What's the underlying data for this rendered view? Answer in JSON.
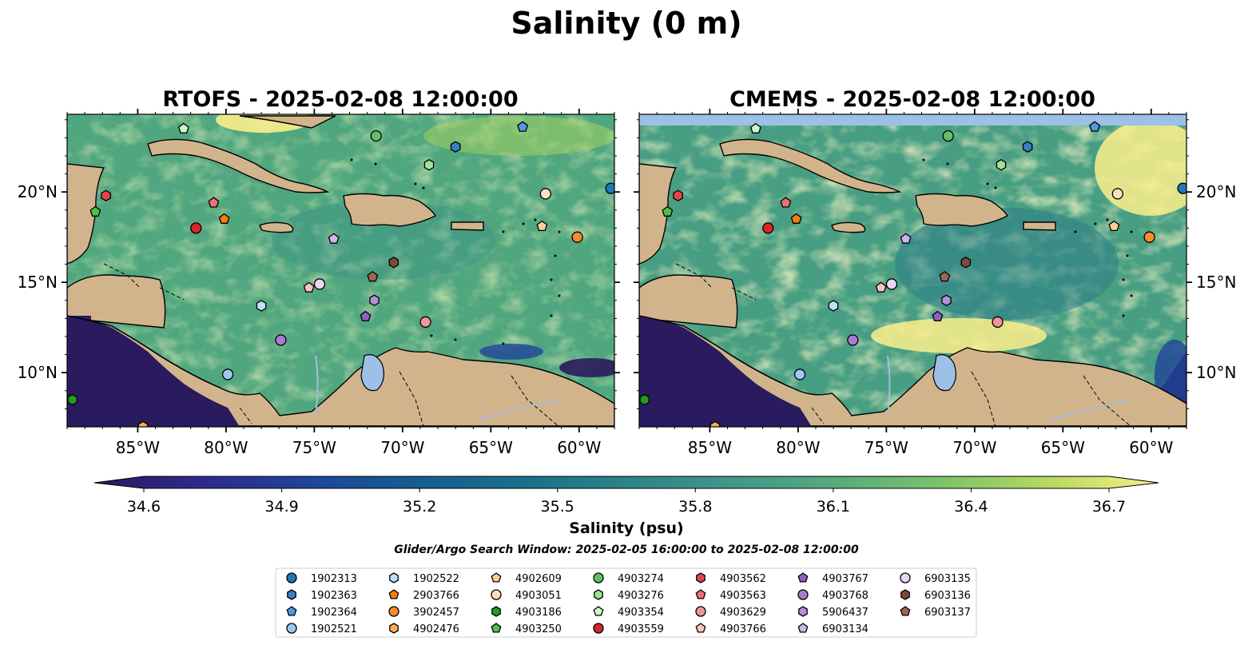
{
  "figure": {
    "title": "Salinity (0 m)",
    "colorbar_label": "Salinity (psu)",
    "search_window": "Glider/Argo Search Window: 2025-02-05 16:00:00 to 2025-02-08 12:00:00"
  },
  "colors": {
    "land": "#d2b48c",
    "ocean_nodata": "#9cc0e6",
    "lake": "#9cc0e6",
    "river": "#a7bcd8",
    "colormap": [
      "#2a1a5e",
      "#2e2a8c",
      "#1f449a",
      "#155c91",
      "#186f8b",
      "#2b8488",
      "#409889",
      "#58ab7c",
      "#7ec36a",
      "#a6d35e",
      "#d9e36c",
      "#fbee8c"
    ]
  },
  "chart_data": [
    {
      "type": "heatmap",
      "title": "RTOFS - 2025-02-08 12:00:00",
      "xlim": [
        -89,
        -58
      ],
      "ylim": [
        7,
        24.3
      ],
      "xticks": [
        -85,
        -80,
        -75,
        -70,
        -65,
        -60
      ],
      "xticklabels": [
        "85°W",
        "80°W",
        "75°W",
        "70°W",
        "65°W",
        "60°W"
      ],
      "yticks": [
        10,
        15,
        20
      ],
      "yticklabels": [
        "10°N",
        "15°N",
        "20°N"
      ],
      "value_range": [
        34.6,
        36.7
      ],
      "grid": false
    },
    {
      "type": "heatmap",
      "title": "CMEMS - 2025-02-08 12:00:00",
      "xlim": [
        -89,
        -58
      ],
      "ylim": [
        7,
        24.3
      ],
      "xticks": [
        -85,
        -80,
        -75,
        -70,
        -65,
        -60
      ],
      "xticklabels": [
        "85°W",
        "80°W",
        "75°W",
        "70°W",
        "65°W",
        "60°W"
      ],
      "yticks": [
        10,
        15,
        20
      ],
      "yticklabels": [
        "10°N",
        "15°N",
        "20°N"
      ],
      "value_range": [
        34.6,
        36.7
      ],
      "grid": false
    }
  ],
  "colorbar": {
    "min": 34.6,
    "max": 36.7,
    "ticks": [
      "34.6",
      "34.9",
      "35.2",
      "35.5",
      "35.8",
      "36.1",
      "36.4",
      "36.7"
    ],
    "extend": "both"
  },
  "floats": [
    {
      "id": "1902313",
      "marker": "circle",
      "color": "#1f77b4",
      "lon": -58.2,
      "lat": 20.2
    },
    {
      "id": "1902363",
      "marker": "hexagon",
      "color": "#3a7fc4",
      "lon": -67.0,
      "lat": 22.5
    },
    {
      "id": "1902364",
      "marker": "pentagon",
      "color": "#4f9ae0",
      "lon": -63.2,
      "lat": 23.6
    },
    {
      "id": "1902521",
      "marker": "circle",
      "color": "#9ccaf2",
      "lon": -79.9,
      "lat": 9.9
    },
    {
      "id": "1902522",
      "marker": "hexagon",
      "color": "#bfe0f8",
      "lon": -78.0,
      "lat": 13.7
    },
    {
      "id": "2903766",
      "marker": "pentagon",
      "color": "#f07f10",
      "lon": -80.1,
      "lat": 18.5
    },
    {
      "id": "3902457",
      "marker": "circle",
      "color": "#f58b2e",
      "lon": -60.1,
      "lat": 17.5
    },
    {
      "id": "4902476",
      "marker": "hexagon",
      "color": "#fcae5c",
      "lon": -84.7,
      "lat": 7.0
    },
    {
      "id": "4902609",
      "marker": "pentagon",
      "color": "#fdcd96",
      "lon": -62.1,
      "lat": 18.1
    },
    {
      "id": "4903051",
      "marker": "circle",
      "color": "#fde1c4",
      "lon": -61.9,
      "lat": 19.9
    },
    {
      "id": "4903186",
      "marker": "hexagon",
      "color": "#239b23",
      "lon": -88.7,
      "lat": 8.5
    },
    {
      "id": "4903250",
      "marker": "pentagon",
      "color": "#4cbf4c",
      "lon": -87.4,
      "lat": 18.9
    },
    {
      "id": "4903274",
      "marker": "circle",
      "color": "#62c062",
      "lon": -71.5,
      "lat": 23.1
    },
    {
      "id": "4903276",
      "marker": "hexagon",
      "color": "#9ee39a",
      "lon": -68.5,
      "lat": 21.5
    },
    {
      "id": "4903354",
      "marker": "pentagon",
      "color": "#ccf7c8",
      "lon": -82.4,
      "lat": 23.5
    },
    {
      "id": "4903559",
      "marker": "circle",
      "color": "#d62728",
      "lon": -81.7,
      "lat": 18.0
    },
    {
      "id": "4903562",
      "marker": "hexagon",
      "color": "#e3464a",
      "lon": -86.8,
      "lat": 19.8
    },
    {
      "id": "4903563",
      "marker": "pentagon",
      "color": "#ee6f6f",
      "lon": -80.7,
      "lat": 19.4
    },
    {
      "id": "4903629",
      "marker": "circle",
      "color": "#f09696",
      "lon": -68.7,
      "lat": 12.8
    },
    {
      "id": "4903766",
      "marker": "pentagon",
      "color": "#fbc2c2",
      "lon": -75.3,
      "lat": 14.7
    },
    {
      "id": "4903767",
      "marker": "pentagon",
      "color": "#8e5fc0",
      "lon": -72.1,
      "lat": 13.1
    },
    {
      "id": "4903768",
      "marker": "circle",
      "color": "#a57cd2",
      "lon": -76.9,
      "lat": 11.8
    },
    {
      "id": "5906437",
      "marker": "hexagon",
      "color": "#b58edc",
      "lon": -71.6,
      "lat": 14.0
    },
    {
      "id": "6903134",
      "marker": "pentagon",
      "color": "#cdb4ea",
      "lon": -73.9,
      "lat": 17.4
    },
    {
      "id": "6903135",
      "marker": "circle",
      "color": "#ecd6f2",
      "lon": -74.7,
      "lat": 14.9
    },
    {
      "id": "6903136",
      "marker": "hexagon",
      "color": "#7a4a3a",
      "lon": -70.5,
      "lat": 16.1
    },
    {
      "id": "6903137",
      "marker": "pentagon",
      "color": "#9a6656",
      "lon": -71.7,
      "lat": 15.3
    }
  ]
}
